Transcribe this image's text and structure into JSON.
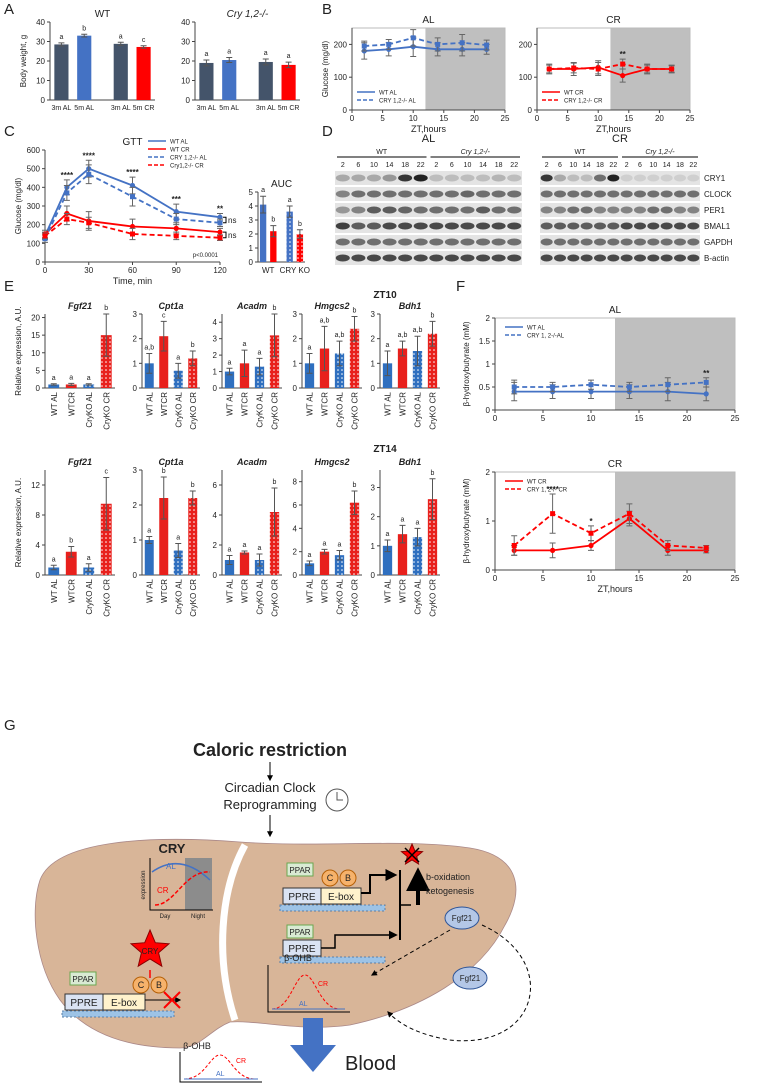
{
  "panel_labels": [
    "A",
    "B",
    "C",
    "D",
    "E",
    "F",
    "G"
  ],
  "e_rows": [
    "ZT10",
    "ZT14"
  ],
  "chart_data": [
    {
      "type": "bar",
      "title": "WT",
      "y_label": "Body weight, g",
      "categories": [
        "3m AL",
        "5m AL",
        "3m AL",
        "5m CR"
      ],
      "values": [
        28.5,
        33,
        28.8,
        27.2
      ],
      "errors": [
        0.8,
        0.7,
        0.8,
        0.6
      ],
      "letters": [
        "a",
        "b",
        "a",
        "c"
      ],
      "colors": [
        "#44546a",
        "#4472c4",
        "#44546a",
        "#ff0000"
      ],
      "ylim": [
        0,
        40
      ],
      "yticks": [
        0,
        10,
        20,
        30,
        40
      ]
    },
    {
      "type": "bar",
      "title": "Cry 1,2-/-",
      "categories": [
        "3m AL",
        "5m AL",
        "3m AL",
        "5m CR"
      ],
      "values": [
        19,
        20.5,
        19.5,
        18
      ],
      "errors": [
        1.5,
        1.3,
        1.5,
        1.4
      ],
      "letters": [
        "a",
        "a",
        "a",
        "a"
      ],
      "colors": [
        "#44546a",
        "#4472c4",
        "#44546a",
        "#ff0000"
      ],
      "ylim": [
        0,
        40
      ],
      "yticks": [
        0,
        10,
        20,
        30,
        40
      ]
    },
    {
      "type": "line",
      "title": "AL",
      "x_label": "ZT,hours",
      "y_label": "Glucose (mg/dl)",
      "xlim": [
        0,
        25
      ],
      "xticks": [
        0,
        5,
        10,
        15,
        20,
        25
      ],
      "ylim": [
        0,
        250
      ],
      "yticks": [
        0,
        100,
        200
      ],
      "night_start": 12,
      "series": [
        {
          "name": "WT AL",
          "color": "#4472c4",
          "dashed": false,
          "x": [
            2,
            6,
            10,
            14,
            18,
            22
          ],
          "values": [
            180,
            185,
            193,
            185,
            185,
            185
          ],
          "errors": [
            25,
            20,
            30,
            20,
            20,
            15
          ]
        },
        {
          "name": "CRY 1,2-/- AL",
          "color": "#4472c4",
          "dashed": true,
          "x": [
            2,
            6,
            10,
            14,
            18,
            22
          ],
          "values": [
            195,
            200,
            220,
            200,
            205,
            198
          ],
          "errors": [
            15,
            15,
            25,
            20,
            25,
            15
          ]
        }
      ],
      "annotations": []
    },
    {
      "type": "line",
      "title": "CR",
      "x_label": "ZT,hours",
      "xlim": [
        0,
        25
      ],
      "xticks": [
        0,
        5,
        10,
        15,
        20,
        25
      ],
      "ylim": [
        0,
        250
      ],
      "yticks": [
        0,
        100,
        200
      ],
      "night_start": 12,
      "series": [
        {
          "name": "WT CR",
          "color": "#ff0000",
          "dashed": false,
          "x": [
            2,
            6,
            10,
            14,
            18,
            22
          ],
          "values": [
            125,
            125,
            130,
            105,
            125,
            125
          ],
          "errors": [
            15,
            20,
            20,
            20,
            15,
            12
          ]
        },
        {
          "name": "CRY 1,2-/- CR",
          "color": "#ff0000",
          "dashed": true,
          "x": [
            2,
            6,
            10,
            14,
            18,
            22
          ],
          "values": [
            125,
            128,
            125,
            140,
            125,
            125
          ],
          "errors": [
            12,
            15,
            20,
            15,
            12,
            10
          ]
        }
      ],
      "annotations": [
        {
          "text": "**",
          "x": 14
        }
      ]
    },
    {
      "type": "line",
      "title": "GTT",
      "x_label": "Time, min",
      "y_label": "Glucose (mg/dl)",
      "xlim": [
        0,
        120
      ],
      "xticks": [
        0,
        30,
        60,
        90,
        120
      ],
      "ylim": [
        0,
        600
      ],
      "yticks": [
        0,
        100,
        200,
        300,
        400,
        500,
        600
      ],
      "series": [
        {
          "name": "WT AL",
          "color": "#4472c4",
          "dashed": false,
          "x": [
            0,
            15,
            30,
            60,
            90,
            120
          ],
          "values": [
            140,
            400,
            500,
            410,
            270,
            240
          ],
          "errors": [
            20,
            40,
            45,
            45,
            40,
            20
          ]
        },
        {
          "name": "WT CR",
          "color": "#ff0000",
          "dashed": false,
          "x": [
            0,
            15,
            30,
            60,
            90,
            120
          ],
          "values": [
            150,
            260,
            220,
            190,
            180,
            160
          ],
          "errors": [
            20,
            40,
            50,
            40,
            30,
            20
          ]
        },
        {
          "name": "CRY 1,2-/- AL",
          "color": "#4472c4",
          "dashed": true,
          "x": [
            0,
            15,
            30,
            60,
            90,
            120
          ],
          "values": [
            125,
            370,
            470,
            350,
            230,
            210
          ],
          "errors": [
            20,
            40,
            50,
            50,
            30,
            20
          ]
        },
        {
          "name": "Cry1,2-/- CR",
          "color": "#ff0000",
          "dashed": true,
          "x": [
            0,
            15,
            30,
            60,
            90,
            120
          ],
          "values": [
            140,
            230,
            210,
            150,
            140,
            130
          ],
          "errors": [
            15,
            30,
            30,
            30,
            20,
            15
          ]
        }
      ],
      "annotations": [
        {
          "text": "****",
          "x": 15
        },
        {
          "text": "****",
          "x": 30
        },
        {
          "text": "****",
          "x": 60
        },
        {
          "text": "***",
          "x": 90
        },
        {
          "text": "**",
          "x": 120
        }
      ],
      "note": "p<0.0001",
      "brackets": [
        "ns",
        "ns"
      ]
    },
    {
      "type": "bar",
      "title": "AUC",
      "categories": [
        "WT",
        null,
        "CRY KO",
        null
      ],
      "values": [
        4.1,
        2.2,
        3.6,
        2.0
      ],
      "errors": [
        0.6,
        0.4,
        0.4,
        0.3
      ],
      "letters": [
        "a",
        "b",
        "a",
        "b"
      ],
      "colors": [
        "#4472c4",
        "#ff0000",
        "#4472c4",
        "#ff0000"
      ],
      "dotted": [
        false,
        false,
        true,
        true
      ],
      "ylim": [
        0,
        5
      ],
      "yticks": [
        0,
        1,
        2,
        3,
        4,
        5
      ]
    },
    {
      "type": "bar",
      "title": "Fgf21",
      "y_label": "Relative expression, A.U.",
      "categories": [
        "WT AL",
        "WTCR",
        "CryKO AL",
        "CryKO CR"
      ],
      "values": [
        1,
        1,
        1,
        15
      ],
      "errors": [
        0.2,
        0.3,
        0.2,
        6
      ],
      "letters": [
        "a",
        "a",
        "a",
        "b"
      ],
      "colors": [
        "#2f6fbf",
        "#e8201c",
        "#2f6fbf",
        "#e8201c"
      ],
      "dotted": [
        false,
        false,
        true,
        true
      ],
      "ylim": [
        0,
        21
      ],
      "yticks": [
        0,
        5,
        10,
        15,
        20
      ]
    },
    {
      "type": "bar",
      "title": "Cpt1a",
      "categories": [
        "WT AL",
        "WTCR",
        "CryKO AL",
        "CryKO CR"
      ],
      "values": [
        1,
        2.1,
        0.7,
        1.2
      ],
      "errors": [
        0.4,
        0.6,
        0.3,
        0.3
      ],
      "letters": [
        "a,b",
        "c",
        "a",
        "b"
      ],
      "colors": [
        "#2f6fbf",
        "#e8201c",
        "#2f6fbf",
        "#e8201c"
      ],
      "dotted": [
        false,
        false,
        true,
        true
      ],
      "ylim": [
        0,
        3
      ],
      "yticks": [
        0,
        1,
        2,
        3
      ]
    },
    {
      "type": "bar",
      "title": "Acadm",
      "categories": [
        "WT AL",
        "WTCR",
        "CryKO AL",
        "CryKO CR"
      ],
      "values": [
        1,
        1.5,
        1.3,
        3.2
      ],
      "errors": [
        0.2,
        0.8,
        0.5,
        1.3
      ],
      "letters": [
        "a",
        "a",
        "a",
        "b"
      ],
      "colors": [
        "#2f6fbf",
        "#e8201c",
        "#2f6fbf",
        "#e8201c"
      ],
      "dotted": [
        false,
        false,
        true,
        true
      ],
      "ylim": [
        0,
        4.5
      ],
      "yticks": [
        0,
        1,
        2,
        3,
        4
      ]
    },
    {
      "type": "bar",
      "title": "Hmgcs2",
      "categories": [
        "WT AL",
        "WTCR",
        "CryKO AL",
        "CryKO CR"
      ],
      "values": [
        1,
        1.6,
        1.4,
        2.4
      ],
      "errors": [
        0.4,
        0.9,
        0.5,
        0.5
      ],
      "letters": [
        "a",
        "a,b",
        "a,b",
        "b"
      ],
      "colors": [
        "#2f6fbf",
        "#e8201c",
        "#2f6fbf",
        "#e8201c"
      ],
      "dotted": [
        false,
        false,
        true,
        true
      ],
      "ylim": [
        0,
        3
      ],
      "yticks": [
        0,
        1,
        2,
        3
      ]
    },
    {
      "type": "bar",
      "title": "Bdh1",
      "categories": [
        "WT AL",
        "WTCR",
        "CryKO AL",
        "CryKO CR"
      ],
      "values": [
        1,
        1.6,
        1.5,
        2.2
      ],
      "errors": [
        0.5,
        0.3,
        0.6,
        0.5
      ],
      "letters": [
        "a",
        "a,b",
        "a,b",
        "b"
      ],
      "colors": [
        "#2f6fbf",
        "#e8201c",
        "#2f6fbf",
        "#e8201c"
      ],
      "dotted": [
        false,
        false,
        true,
        true
      ],
      "ylim": [
        0,
        3
      ],
      "yticks": [
        0,
        1,
        2,
        3
      ]
    },
    {
      "type": "bar",
      "title": "Fgf21",
      "y_label": "Relative expression, A.U.",
      "categories": [
        "WT AL",
        "WTCR",
        "CryKO AL",
        "CryKO CR"
      ],
      "values": [
        1,
        3.1,
        1,
        9.5
      ],
      "errors": [
        0.3,
        0.7,
        0.5,
        3.5
      ],
      "letters": [
        "a",
        "b",
        "a",
        "c"
      ],
      "colors": [
        "#2f6fbf",
        "#e8201c",
        "#2f6fbf",
        "#e8201c"
      ],
      "dotted": [
        false,
        false,
        true,
        true
      ],
      "ylim": [
        0,
        14
      ],
      "yticks": [
        0,
        4,
        8,
        12
      ]
    },
    {
      "type": "bar",
      "title": "Cpt1a",
      "categories": [
        "WT AL",
        "WTCR",
        "CryKO AL",
        "CryKO CR"
      ],
      "values": [
        1,
        2.2,
        0.7,
        2.2
      ],
      "errors": [
        0.1,
        0.6,
        0.2,
        0.2
      ],
      "letters": [
        "a",
        "b",
        "a",
        "b"
      ],
      "colors": [
        "#2f6fbf",
        "#e8201c",
        "#2f6fbf",
        "#e8201c"
      ],
      "dotted": [
        false,
        false,
        true,
        true
      ],
      "ylim": [
        0,
        3
      ],
      "yticks": [
        0,
        1,
        2,
        3
      ]
    },
    {
      "type": "bar",
      "title": "Acadm",
      "categories": [
        "WT AL",
        "WTCR",
        "CryKO AL",
        "CryKO CR"
      ],
      "values": [
        1,
        1.5,
        1,
        4.2
      ],
      "errors": [
        0.3,
        0.1,
        0.4,
        1.6
      ],
      "letters": [
        "a",
        "a",
        "a",
        "b"
      ],
      "colors": [
        "#2f6fbf",
        "#e8201c",
        "#2f6fbf",
        "#e8201c"
      ],
      "dotted": [
        false,
        false,
        true,
        true
      ],
      "ylim": [
        0,
        7
      ],
      "yticks": [
        0,
        2,
        4,
        6
      ]
    },
    {
      "type": "bar",
      "title": "Hmgcs2",
      "categories": [
        "WT AL",
        "WTCR",
        "CryKO AL",
        "CryKO CR"
      ],
      "values": [
        1,
        2,
        1.7,
        6.2
      ],
      "errors": [
        0.2,
        0.2,
        0.4,
        1
      ],
      "letters": [
        "a",
        "a",
        "a",
        "b"
      ],
      "colors": [
        "#2f6fbf",
        "#e8201c",
        "#2f6fbf",
        "#e8201c"
      ],
      "dotted": [
        false,
        false,
        true,
        true
      ],
      "ylim": [
        0,
        9
      ],
      "yticks": [
        0,
        2,
        4,
        6,
        8
      ]
    },
    {
      "type": "bar",
      "title": "Bdh1",
      "categories": [
        "WT AL",
        "WTCR",
        "CryKO AL",
        "CryKO CR"
      ],
      "values": [
        1,
        1.4,
        1.3,
        2.6
      ],
      "errors": [
        0.2,
        0.3,
        0.3,
        0.7
      ],
      "letters": [
        "a",
        "a",
        "a",
        "b"
      ],
      "colors": [
        "#2f6fbf",
        "#e8201c",
        "#2f6fbf",
        "#e8201c"
      ],
      "dotted": [
        false,
        false,
        true,
        true
      ],
      "ylim": [
        0,
        3.6
      ],
      "yticks": [
        0,
        1,
        2,
        3
      ]
    },
    {
      "type": "line",
      "title": "AL",
      "y_label": "β-hydroxybutyrate (mM)",
      "xlim": [
        0,
        25
      ],
      "xticks": [
        0,
        5,
        10,
        15,
        20,
        25
      ],
      "ylim": [
        0,
        2
      ],
      "yticks": [
        0,
        0.5,
        1,
        1.5,
        2
      ],
      "night_start": 12.5,
      "series": [
        {
          "name": "WT AL",
          "color": "#4472c4",
          "dashed": false,
          "x": [
            2,
            6,
            10,
            14,
            18,
            22
          ],
          "values": [
            0.4,
            0.4,
            0.4,
            0.4,
            0.4,
            0.35
          ],
          "errors": [
            0.2,
            0.15,
            0.15,
            0.15,
            0.2,
            0.15
          ]
        },
        {
          "name": "CRY 1, 2-/-AL",
          "color": "#4472c4",
          "dashed": true,
          "x": [
            2,
            6,
            10,
            14,
            18,
            22
          ],
          "values": [
            0.5,
            0.5,
            0.55,
            0.5,
            0.55,
            0.6
          ],
          "errors": [
            0.15,
            0.1,
            0.1,
            0.1,
            0.15,
            0.1
          ]
        }
      ],
      "annotations": [
        {
          "text": "**",
          "x": 22
        }
      ]
    },
    {
      "type": "line",
      "title": "CR",
      "x_label": "ZT,hours",
      "y_label": "β-hydroxybutyrate (mM)",
      "xlim": [
        0,
        25
      ],
      "xticks": [
        0,
        5,
        10,
        15,
        20,
        25
      ],
      "ylim": [
        0,
        2
      ],
      "yticks": [
        0,
        1,
        2
      ],
      "night_start": 12.5,
      "series": [
        {
          "name": "WT CR",
          "color": "#ff0000",
          "dashed": false,
          "x": [
            2,
            6,
            10,
            14,
            18,
            22
          ],
          "values": [
            0.4,
            0.4,
            0.5,
            1.05,
            0.4,
            0.4
          ],
          "errors": [
            0.1,
            0.15,
            0.1,
            0.15,
            0.1,
            0.05
          ]
        },
        {
          "name": "CRY 1, 2-/- CR",
          "color": "#ff0000",
          "dashed": true,
          "x": [
            2,
            6,
            10,
            14,
            18,
            22
          ],
          "values": [
            0.5,
            1.15,
            0.75,
            1.15,
            0.5,
            0.45
          ],
          "errors": [
            0.2,
            0.4,
            0.15,
            0.2,
            0.1,
            0.05
          ]
        }
      ],
      "annotations": [
        {
          "text": "****",
          "x": 6
        },
        {
          "text": "*",
          "x": 10
        }
      ]
    }
  ],
  "blots": {
    "titles": [
      "AL",
      "CR"
    ],
    "groups": [
      "WT",
      "Cry 1,2-/-"
    ],
    "lanes": [
      2,
      6,
      10,
      14,
      18,
      22
    ],
    "proteins": [
      "CRY1",
      "CLOCK",
      "PER1",
      "BMAL1",
      "GAPDH",
      "B-actin"
    ]
  },
  "diagram": {
    "title": "Caloric restriction",
    "clock": [
      "Circadian Clock",
      "Reprogramming"
    ],
    "inset": {
      "title": "CRY",
      "ylabel": "expression",
      "x": [
        "Day",
        "Night"
      ],
      "lines": [
        "AL",
        "CR"
      ]
    },
    "complex_top": {
      "factors": [
        "PPAR",
        "C",
        "B"
      ],
      "elements": [
        "PPRE",
        "E-box"
      ]
    },
    "complex_mid": {
      "factors": [
        "PPAR"
      ],
      "elements": [
        "PPRE"
      ]
    },
    "complex_left": {
      "factors": [
        "PPAR",
        "C",
        "B"
      ],
      "elements": [
        "PPRE",
        "E-box"
      ]
    },
    "star_left": "CRY",
    "outputs": [
      "b-oxidation",
      "ketogenesis"
    ],
    "fgf21_liver": "Fgf21",
    "fgf21_blood": "Fgf21",
    "liver_ohb": {
      "title": "β-OHB",
      "lines": [
        "CR",
        "AL"
      ]
    },
    "blood_ohb": {
      "title": "β-OHB",
      "lines": [
        "CR",
        "AL"
      ]
    },
    "blood": "Blood"
  }
}
